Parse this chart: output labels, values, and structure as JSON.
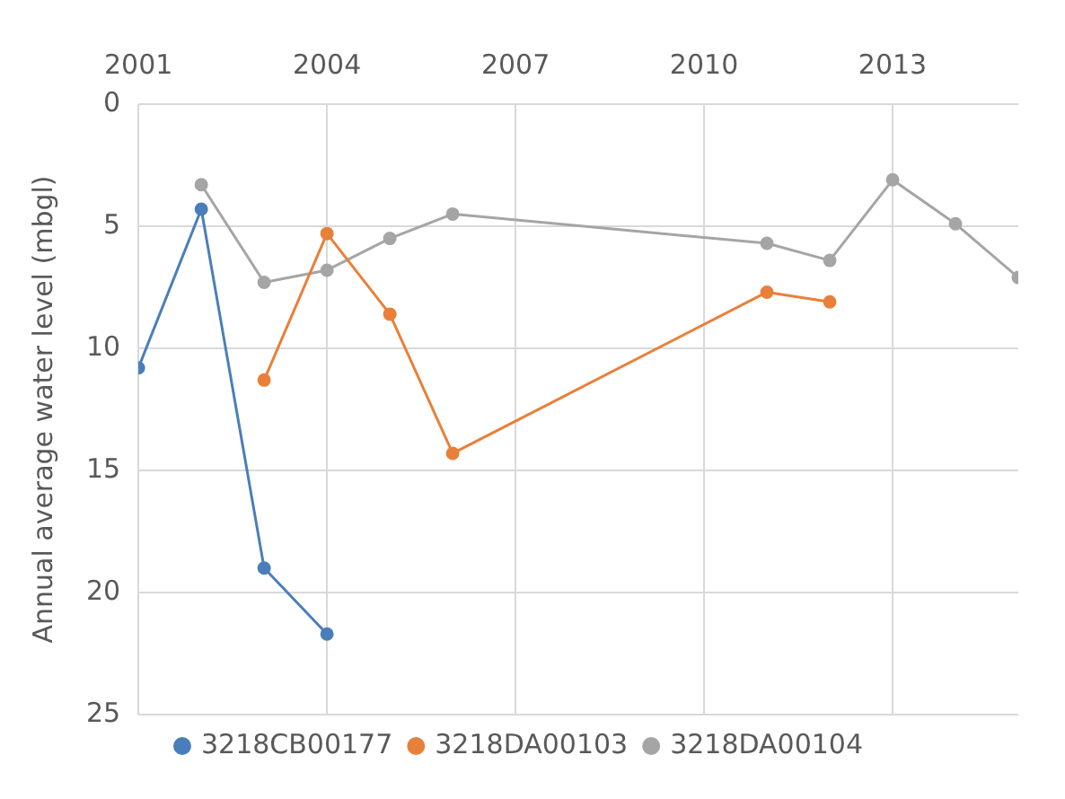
{
  "chart_data": {
    "type": "line",
    "ylabel": "Annual average water level (mbgl)",
    "xlim": [
      2001,
      2015
    ],
    "xticks": [
      2001,
      2004,
      2007,
      2010,
      2013
    ],
    "ylim": [
      25,
      0
    ],
    "yticks": [
      0,
      5,
      10,
      15,
      20,
      25
    ],
    "grid": true,
    "legend": "bottom",
    "marker": "circle",
    "line_style": "solid",
    "series": [
      {
        "name": "3218CB00177",
        "color": "#4a7ebb",
        "x": [
          2001,
          2002,
          2003,
          2004
        ],
        "values": [
          10.8,
          4.3,
          19,
          21.7
        ]
      },
      {
        "name": "3218DA00103",
        "color": "#e8803a",
        "x": [
          2003,
          2004,
          2005,
          2006,
          2011,
          2012
        ],
        "values": [
          11.3,
          5.3,
          8.6,
          14.3,
          7.7,
          8.1
        ]
      },
      {
        "name": "3218DA00104",
        "color": "#a5a5a5",
        "x": [
          2002,
          2003,
          2004,
          2005,
          2006,
          2011,
          2012,
          2013,
          2014,
          2015
        ],
        "values": [
          3.3,
          7.3,
          6.8,
          5.5,
          4.5,
          5.7,
          6.4,
          3.1,
          4.9,
          7.1
        ]
      }
    ]
  }
}
